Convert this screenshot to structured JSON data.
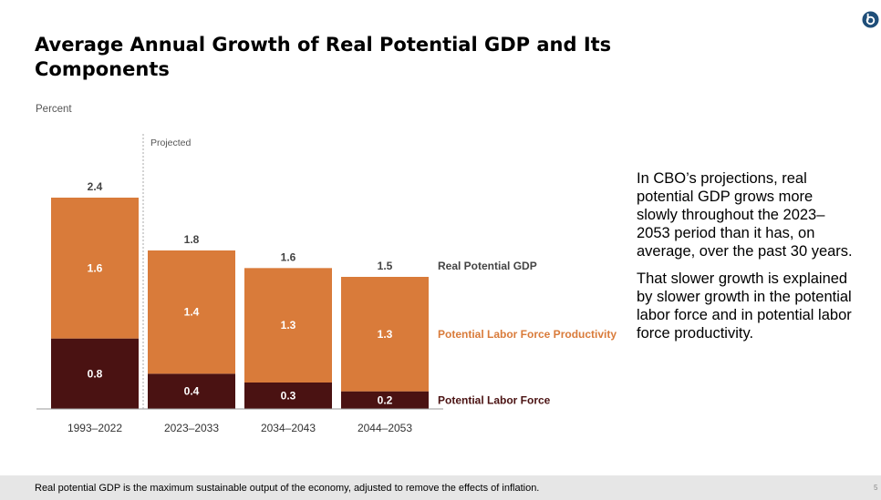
{
  "slide": {
    "title": "Average Annual Growth of Real Potential GDP and Its Components",
    "page_number": "5",
    "body_paragraphs": [
      "In CBO’s projections, real potential GDP grows more slowly throughout the 2023–2053 period than it has, on average, over the past 30 years.",
      "That slower growth is explained by slower growth in the potential labor force and in potential labor force productivity."
    ],
    "footer_note": "Real potential GDP is the maximum sustainable output of the economy, adjusted to remove the effects of inflation."
  },
  "colors": {
    "labor_force": "#4a1212",
    "productivity": "#d97b3a",
    "productivity_label": "#d97b3a",
    "axis": "#999999",
    "logo": "#1f4e79"
  },
  "icons": {
    "logo": "cbo-logo-icon"
  },
  "chart_data": {
    "type": "bar",
    "stacked": true,
    "ylabel": "Percent",
    "projected_label": "Projected",
    "categories": [
      "1993–2022",
      "2023–2033",
      "2034–2043",
      "2044–2053"
    ],
    "totals": [
      2.4,
      1.8,
      1.6,
      1.5
    ],
    "total_labels": [
      "2.4",
      "1.8",
      "1.6",
      "1.5"
    ],
    "series": [
      {
        "name": "Potential Labor Force",
        "values": [
          0.8,
          0.4,
          0.3,
          0.2
        ],
        "labels": [
          "0.8",
          "0.4",
          "0.3",
          "0.2"
        ]
      },
      {
        "name": "Potential Labor Force Productivity",
        "values": [
          1.6,
          1.4,
          1.3,
          1.3
        ],
        "labels": [
          "1.6",
          "1.4",
          "1.3",
          "1.3"
        ]
      }
    ],
    "total_series_name": "Real Potential GDP",
    "ylim": [
      0,
      2.4
    ],
    "grid": false,
    "legend_placement": "right-of-bars"
  }
}
